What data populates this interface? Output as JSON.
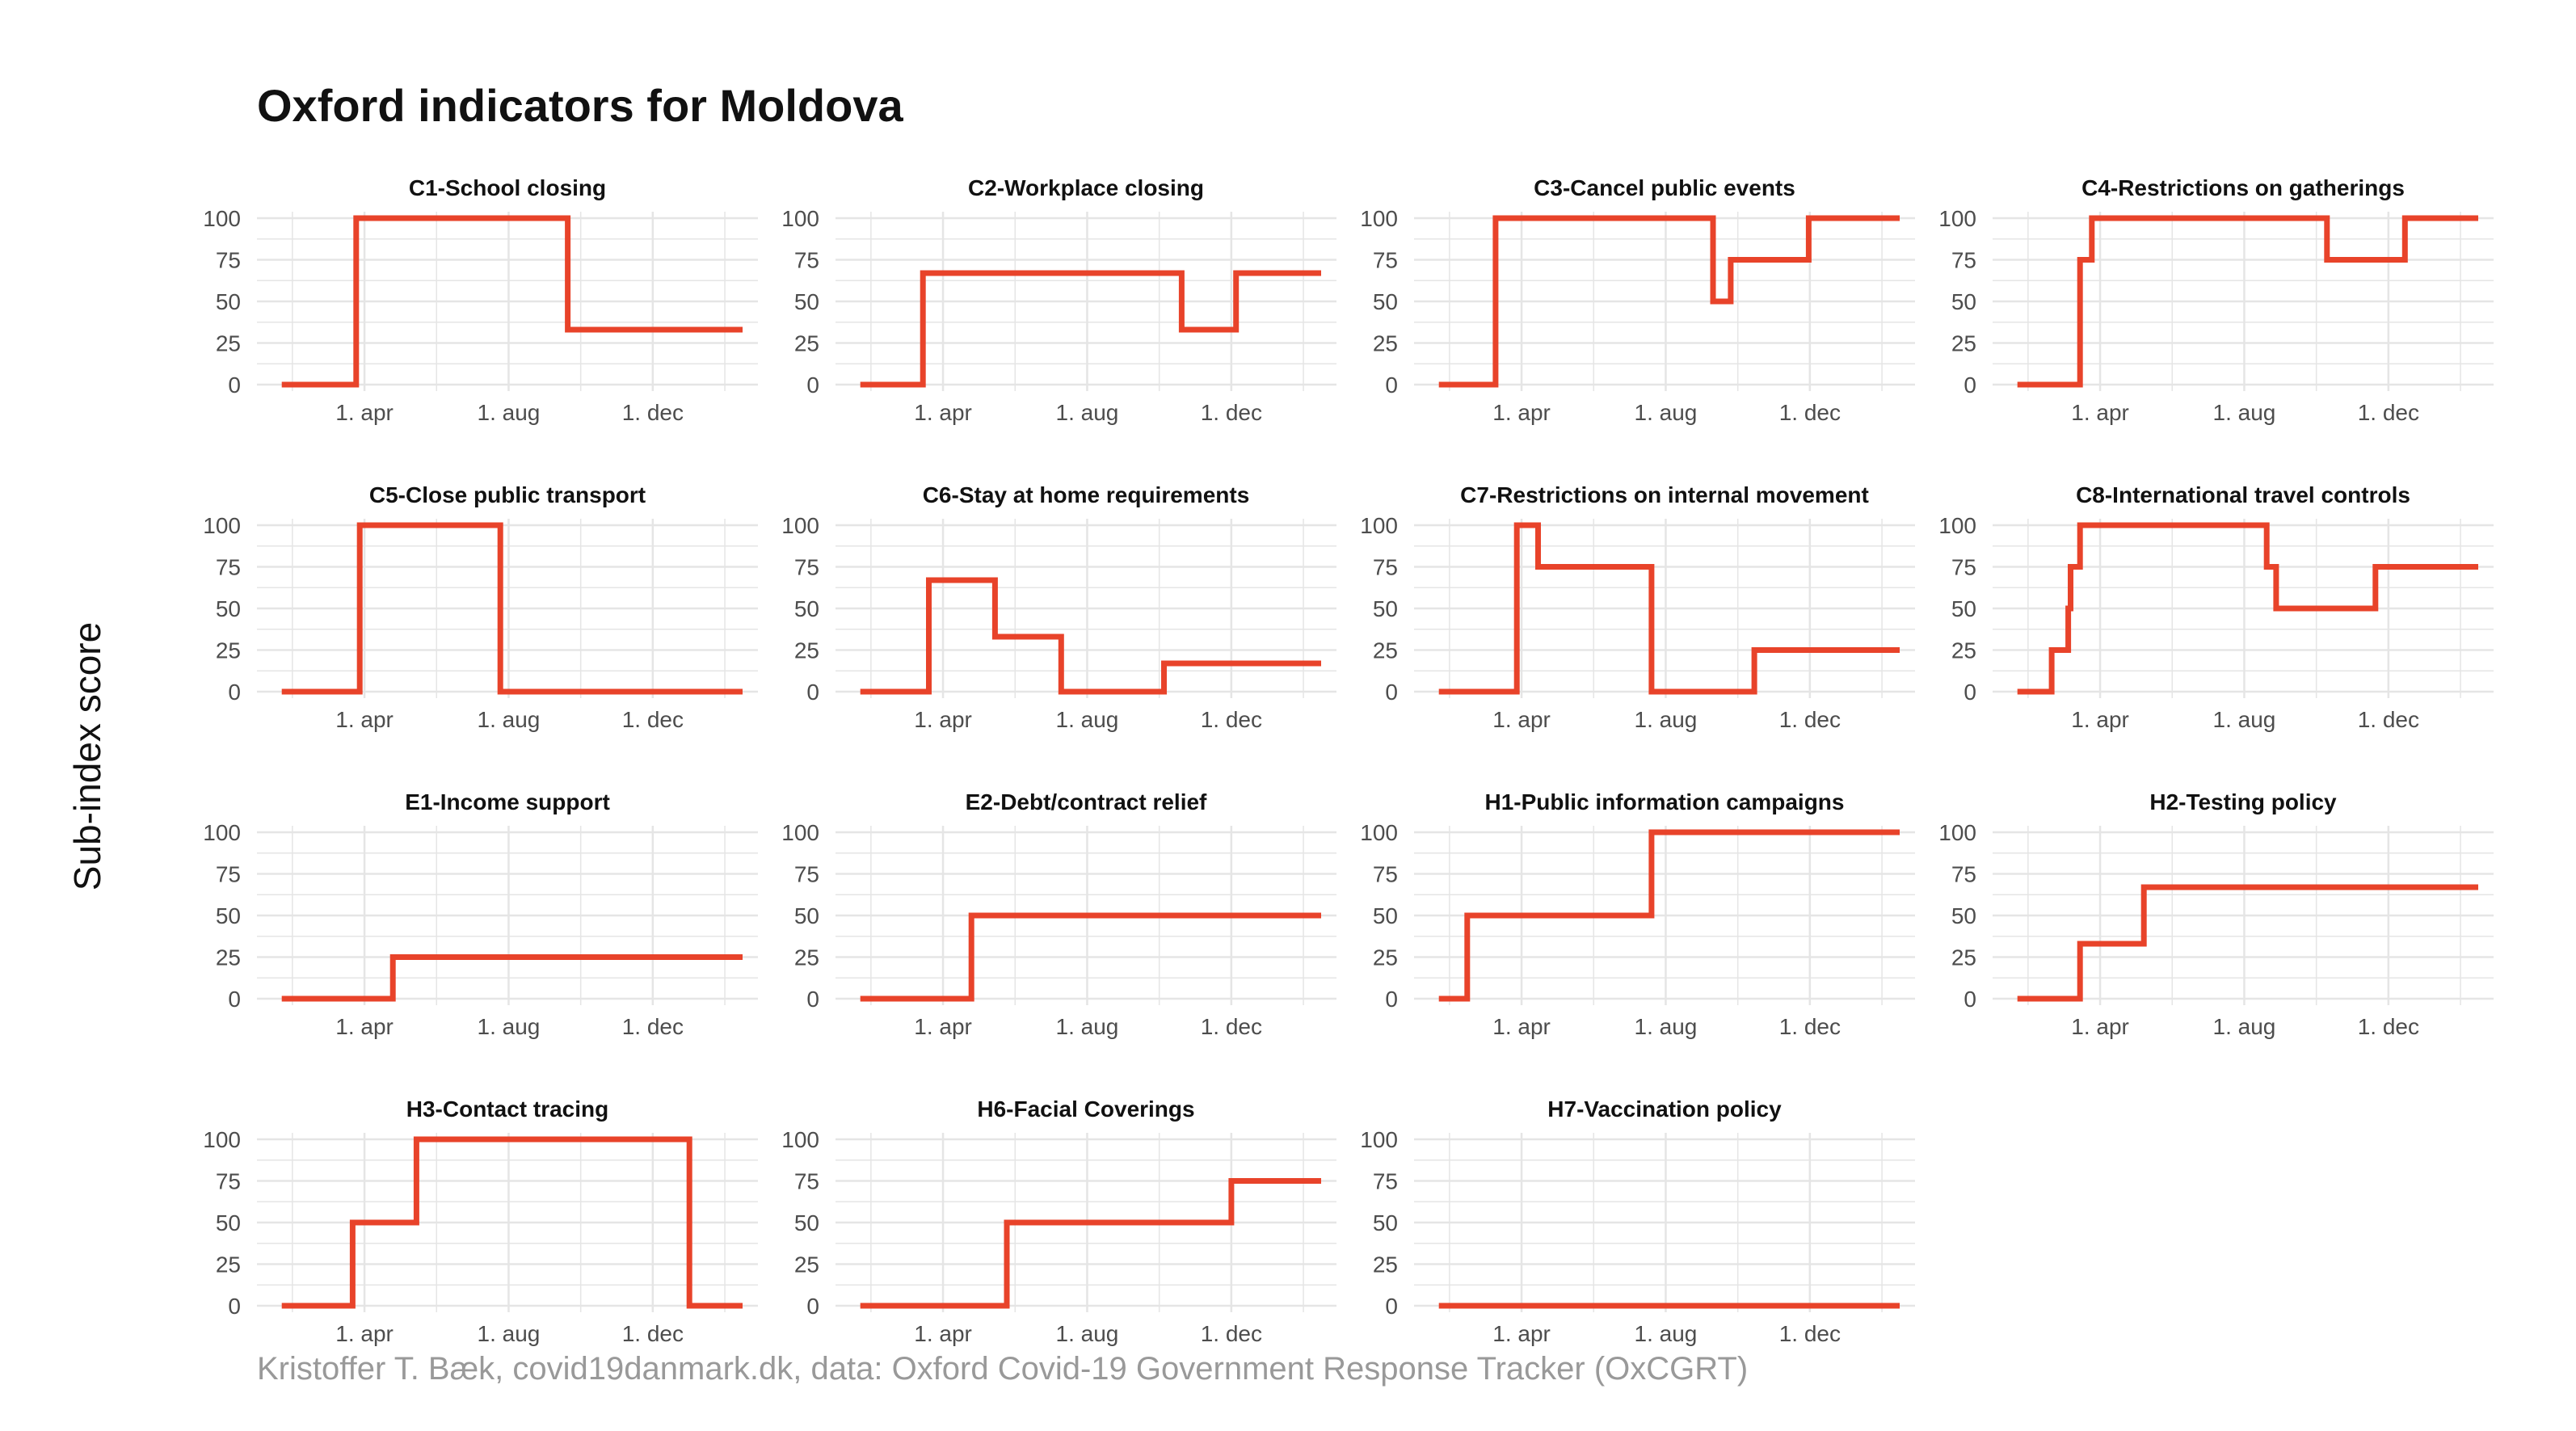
{
  "title": "Oxford indicators for Moldova",
  "ylabel": "Sub-index score",
  "caption": "Kristoffer T. Bæk, covid19danmark.dk, data: Oxford Covid-19 Government Response Tracker (OxCGRT)",
  "colors": {
    "line": "#E8432A",
    "grid": "#E5E5E5",
    "text": "#4d4d4d"
  },
  "chart_data": {
    "type": "line",
    "facet": "small-multiples",
    "xlim": [
      "2020-01-01",
      "2021-02-28"
    ],
    "ylim": [
      0,
      100
    ],
    "y_ticks": [
      0,
      25,
      50,
      75,
      100
    ],
    "x_ticks": [
      {
        "date": "2020-04-01",
        "label": "1. apr"
      },
      {
        "date": "2020-08-01",
        "label": "1. aug"
      },
      {
        "date": "2020-12-01",
        "label": "1. dec"
      }
    ],
    "grid": true,
    "panels": [
      {
        "title": "C1-School closing",
        "series": [
          [
            "2020-01-22",
            0
          ],
          [
            "2020-03-25",
            0
          ],
          [
            "2020-03-25",
            100
          ],
          [
            "2020-09-20",
            100
          ],
          [
            "2020-09-20",
            33
          ],
          [
            "2021-02-15",
            33
          ]
        ]
      },
      {
        "title": "C2-Workplace closing",
        "series": [
          [
            "2020-01-22",
            0
          ],
          [
            "2020-03-15",
            0
          ],
          [
            "2020-03-15",
            67
          ],
          [
            "2020-10-20",
            67
          ],
          [
            "2020-10-20",
            33
          ],
          [
            "2020-12-05",
            33
          ],
          [
            "2020-12-05",
            67
          ],
          [
            "2021-02-15",
            67
          ]
        ]
      },
      {
        "title": "C3-Cancel public events",
        "series": [
          [
            "2020-01-22",
            0
          ],
          [
            "2020-03-10",
            0
          ],
          [
            "2020-03-10",
            100
          ],
          [
            "2020-09-10",
            100
          ],
          [
            "2020-09-10",
            50
          ],
          [
            "2020-09-25",
            50
          ],
          [
            "2020-09-25",
            75
          ],
          [
            "2020-11-30",
            75
          ],
          [
            "2020-11-30",
            100
          ],
          [
            "2021-02-15",
            100
          ]
        ]
      },
      {
        "title": "C4-Restrictions on gatherings",
        "series": [
          [
            "2020-01-22",
            0
          ],
          [
            "2020-03-15",
            0
          ],
          [
            "2020-03-15",
            75
          ],
          [
            "2020-03-25",
            75
          ],
          [
            "2020-03-25",
            100
          ],
          [
            "2020-10-10",
            100
          ],
          [
            "2020-10-10",
            75
          ],
          [
            "2020-12-15",
            75
          ],
          [
            "2020-12-15",
            100
          ],
          [
            "2021-02-15",
            100
          ]
        ]
      },
      {
        "title": "C5-Close public transport",
        "series": [
          [
            "2020-01-22",
            0
          ],
          [
            "2020-03-28",
            0
          ],
          [
            "2020-03-28",
            100
          ],
          [
            "2020-07-25",
            100
          ],
          [
            "2020-07-25",
            0
          ],
          [
            "2021-02-15",
            0
          ]
        ]
      },
      {
        "title": "C6-Stay at home requirements",
        "series": [
          [
            "2020-01-22",
            0
          ],
          [
            "2020-03-20",
            0
          ],
          [
            "2020-03-20",
            67
          ],
          [
            "2020-05-15",
            67
          ],
          [
            "2020-05-15",
            33
          ],
          [
            "2020-07-10",
            33
          ],
          [
            "2020-07-10",
            0
          ],
          [
            "2020-10-05",
            0
          ],
          [
            "2020-10-05",
            17
          ],
          [
            "2021-02-15",
            17
          ]
        ]
      },
      {
        "title": "C7-Restrictions on internal movement",
        "series": [
          [
            "2020-01-22",
            0
          ],
          [
            "2020-03-28",
            0
          ],
          [
            "2020-03-28",
            100
          ],
          [
            "2020-04-15",
            100
          ],
          [
            "2020-04-15",
            75
          ],
          [
            "2020-07-20",
            75
          ],
          [
            "2020-07-20",
            0
          ],
          [
            "2020-10-15",
            0
          ],
          [
            "2020-10-15",
            25
          ],
          [
            "2021-02-15",
            25
          ]
        ]
      },
      {
        "title": "C8-International travel controls",
        "series": [
          [
            "2020-01-22",
            0
          ],
          [
            "2020-02-20",
            0
          ],
          [
            "2020-02-20",
            25
          ],
          [
            "2020-03-05",
            25
          ],
          [
            "2020-03-05",
            50
          ],
          [
            "2020-03-07",
            50
          ],
          [
            "2020-03-07",
            75
          ],
          [
            "2020-03-15",
            75
          ],
          [
            "2020-03-15",
            100
          ],
          [
            "2020-08-20",
            100
          ],
          [
            "2020-08-20",
            75
          ],
          [
            "2020-08-28",
            75
          ],
          [
            "2020-08-28",
            50
          ],
          [
            "2020-11-20",
            50
          ],
          [
            "2020-11-20",
            75
          ],
          [
            "2021-02-15",
            75
          ]
        ]
      },
      {
        "title": "E1-Income support",
        "series": [
          [
            "2020-01-22",
            0
          ],
          [
            "2020-04-25",
            0
          ],
          [
            "2020-04-25",
            25
          ],
          [
            "2021-02-15",
            25
          ]
        ]
      },
      {
        "title": "E2-Debt/contract relief",
        "series": [
          [
            "2020-01-22",
            0
          ],
          [
            "2020-04-25",
            0
          ],
          [
            "2020-04-25",
            50
          ],
          [
            "2021-02-15",
            50
          ]
        ]
      },
      {
        "title": "H1-Public information campaigns",
        "series": [
          [
            "2020-01-22",
            0
          ],
          [
            "2020-02-15",
            0
          ],
          [
            "2020-02-15",
            50
          ],
          [
            "2020-07-20",
            50
          ],
          [
            "2020-07-20",
            100
          ],
          [
            "2021-02-15",
            100
          ]
        ]
      },
      {
        "title": "H2-Testing policy",
        "series": [
          [
            "2020-01-22",
            0
          ],
          [
            "2020-03-15",
            0
          ],
          [
            "2020-03-15",
            33
          ],
          [
            "2020-05-08",
            33
          ],
          [
            "2020-05-08",
            67
          ],
          [
            "2021-02-15",
            67
          ]
        ]
      },
      {
        "title": "H3-Contact tracing",
        "series": [
          [
            "2020-01-22",
            0
          ],
          [
            "2020-03-22",
            0
          ],
          [
            "2020-03-22",
            50
          ],
          [
            "2020-05-15",
            50
          ],
          [
            "2020-05-15",
            100
          ],
          [
            "2021-01-01",
            100
          ],
          [
            "2021-01-01",
            0
          ],
          [
            "2021-02-15",
            0
          ]
        ]
      },
      {
        "title": "H6-Facial Coverings",
        "series": [
          [
            "2020-01-22",
            0
          ],
          [
            "2020-05-25",
            0
          ],
          [
            "2020-05-25",
            50
          ],
          [
            "2020-12-01",
            50
          ],
          [
            "2020-12-01",
            75
          ],
          [
            "2021-02-15",
            75
          ]
        ]
      },
      {
        "title": "H7-Vaccination policy",
        "series": [
          [
            "2020-01-22",
            0
          ],
          [
            "2021-02-15",
            0
          ]
        ]
      }
    ]
  }
}
